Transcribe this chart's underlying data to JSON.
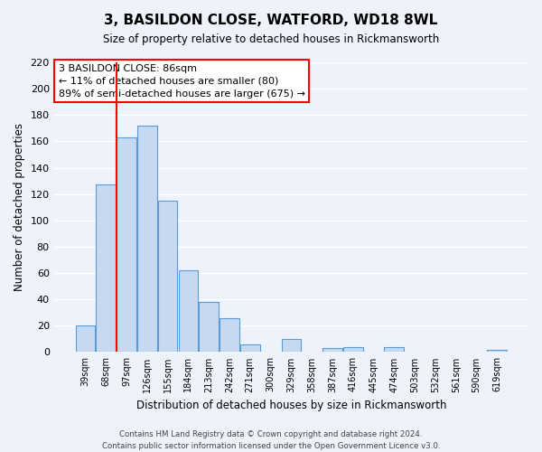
{
  "title": "3, BASILDON CLOSE, WATFORD, WD18 8WL",
  "subtitle": "Size of property relative to detached houses in Rickmansworth",
  "xlabel": "Distribution of detached houses by size in Rickmansworth",
  "ylabel": "Number of detached properties",
  "categories": [
    "39sqm",
    "68sqm",
    "97sqm",
    "126sqm",
    "155sqm",
    "184sqm",
    "213sqm",
    "242sqm",
    "271sqm",
    "300sqm",
    "329sqm",
    "358sqm",
    "387sqm",
    "416sqm",
    "445sqm",
    "474sqm",
    "503sqm",
    "532sqm",
    "561sqm",
    "590sqm",
    "619sqm"
  ],
  "values": [
    20,
    127,
    163,
    172,
    115,
    62,
    38,
    26,
    6,
    0,
    10,
    0,
    3,
    4,
    0,
    4,
    0,
    0,
    0,
    0,
    2
  ],
  "bar_color": "#c6d9f0",
  "bar_edge_color": "#5b9bd5",
  "vline_color": "red",
  "vline_xindex": 1.5,
  "ylim": [
    0,
    220
  ],
  "yticks": [
    0,
    20,
    40,
    60,
    80,
    100,
    120,
    140,
    160,
    180,
    200,
    220
  ],
  "annotation_title": "3 BASILDON CLOSE: 86sqm",
  "annotation_line1": "← 11% of detached houses are smaller (80)",
  "annotation_line2": "89% of semi-detached houses are larger (675) →",
  "annotation_box_color": "white",
  "annotation_box_edge": "red",
  "footer_line1": "Contains HM Land Registry data © Crown copyright and database right 2024.",
  "footer_line2": "Contains public sector information licensed under the Open Government Licence v3.0.",
  "background_color": "#eef2fb",
  "grid_color": "white"
}
